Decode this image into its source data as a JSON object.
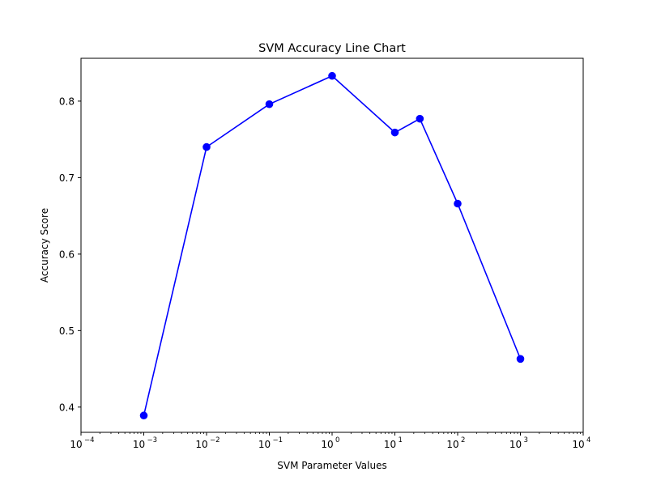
{
  "chart_data": {
    "type": "line",
    "title": "SVM Accuracy Line Chart",
    "xlabel": "SVM Parameter Values",
    "ylabel": "Accuracy Score",
    "xscale": "log",
    "xlim": [
      0.0001,
      10000
    ],
    "ylim": [
      0.367,
      0.856
    ],
    "x_ticks": [
      {
        "value": 0.0001,
        "base": "10",
        "exp": "−4"
      },
      {
        "value": 0.001,
        "base": "10",
        "exp": "−3"
      },
      {
        "value": 0.01,
        "base": "10",
        "exp": "−2"
      },
      {
        "value": 0.1,
        "base": "10",
        "exp": "−1"
      },
      {
        "value": 1,
        "base": "10",
        "exp": "0"
      },
      {
        "value": 10,
        "base": "10",
        "exp": "1"
      },
      {
        "value": 100,
        "base": "10",
        "exp": "2"
      },
      {
        "value": 1000,
        "base": "10",
        "exp": "3"
      },
      {
        "value": 10000,
        "base": "10",
        "exp": "4"
      }
    ],
    "y_ticks": [
      {
        "value": 0.4,
        "label": "0.4"
      },
      {
        "value": 0.5,
        "label": "0.5"
      },
      {
        "value": 0.6,
        "label": "0.6"
      },
      {
        "value": 0.7,
        "label": "0.7"
      },
      {
        "value": 0.8,
        "label": "0.8"
      }
    ],
    "series": [
      {
        "color": "#0000ff",
        "marker": "circle",
        "x": [
          0.001,
          0.01,
          0.1,
          1,
          10,
          25,
          100,
          1000
        ],
        "y": [
          0.389,
          0.74,
          0.796,
          0.833,
          0.759,
          0.777,
          0.666,
          0.463
        ]
      }
    ],
    "grid": false,
    "legend": "none"
  }
}
